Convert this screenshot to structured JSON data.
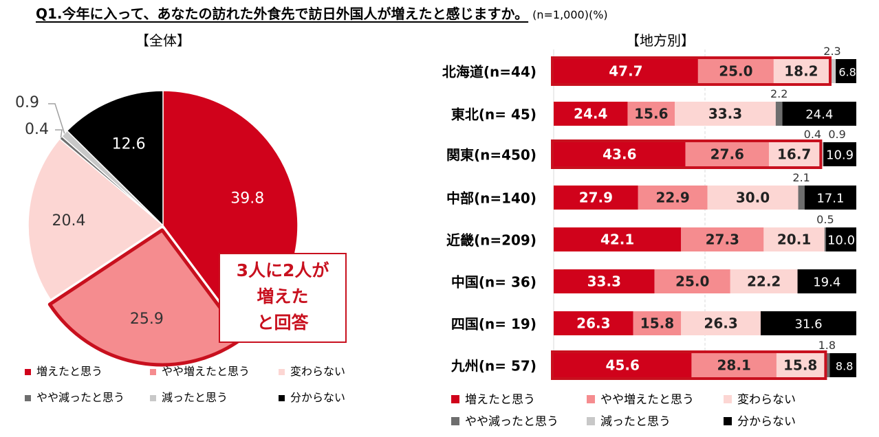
{
  "title": {
    "main": "Q1.今年に入って、あなたの訪れた外食先で訪日外国人が増えたと感じますか。",
    "n_note": "(n=1,000)(%)"
  },
  "colors": {
    "increased": "#d0021b",
    "somewhat_increased": "#f58c8f",
    "unchanged": "#fcd6d3",
    "somewhat_decreased": "#6e6e6e",
    "decreased": "#c8c8c8",
    "unknown": "#000000",
    "highlight": "#c8101e"
  },
  "callout": {
    "lines": [
      "3人に2人が",
      "増えた",
      "と回答"
    ]
  },
  "chart_data": [
    {
      "type": "pie",
      "title": "【全体】",
      "categories": [
        "増えたと思う",
        "やや増えたと思う",
        "変わらない",
        "やや減ったと思う",
        "減ったと思う",
        "分からない"
      ],
      "values": [
        39.8,
        25.9,
        20.4,
        0.4,
        0.9,
        12.6
      ],
      "legend": [
        "増えたと思う",
        "やや増えたと思う",
        "変わらない",
        "やや減ったと思う",
        "減ったと思う",
        "分からない"
      ]
    },
    {
      "type": "bar",
      "orientation": "horizontal",
      "stacked": true,
      "title": "【地方別】",
      "xlim": [
        0,
        100
      ],
      "categories": [
        "北海道(n=44)",
        "東北(n= 45)",
        "関東(n=450)",
        "中部(n=140)",
        "近畿(n=209)",
        "中国(n= 36)",
        "四国(n= 19)",
        "九州(n= 57)"
      ],
      "series": [
        {
          "name": "増えたと思う",
          "values": [
            47.7,
            24.4,
            43.6,
            27.9,
            42.1,
            33.3,
            26.3,
            45.6
          ]
        },
        {
          "name": "やや増えたと思う",
          "values": [
            25.0,
            15.6,
            27.6,
            22.9,
            27.3,
            25.0,
            15.8,
            28.1
          ]
        },
        {
          "name": "変わらない",
          "values": [
            18.2,
            33.3,
            16.7,
            30.0,
            20.1,
            22.2,
            26.3,
            15.8
          ]
        },
        {
          "name": "やや減ったと思う",
          "values": [
            0,
            2.2,
            0.4,
            2.1,
            0.5,
            0,
            0,
            1.8
          ]
        },
        {
          "name": "減ったと思う",
          "values": [
            2.3,
            0,
            0.9,
            0,
            0,
            0,
            0,
            0
          ]
        },
        {
          "name": "分からない",
          "values": [
            6.8,
            24.4,
            10.9,
            17.1,
            10.0,
            19.4,
            31.6,
            8.8
          ]
        }
      ],
      "data_labels": [
        [
          "47.7",
          "25.0",
          "18.2",
          "",
          "2.3",
          "6.8"
        ],
        [
          "24.4",
          "15.6",
          "33.3",
          "2.2",
          "",
          "24.4"
        ],
        [
          "43.6",
          "27.6",
          "16.7",
          "0.4",
          "0.9",
          "10.9"
        ],
        [
          "27.9",
          "22.9",
          "30.0",
          "2.1",
          "",
          "17.1"
        ],
        [
          "42.1",
          "27.3",
          "20.1",
          "0.5",
          "",
          "10.0"
        ],
        [
          "33.3",
          "25.0",
          "22.2",
          "",
          "",
          "19.4"
        ],
        [
          "26.3",
          "15.8",
          "26.3",
          "",
          "",
          "31.6"
        ],
        [
          "45.6",
          "28.1",
          "15.8",
          "1.8",
          "",
          "8.8"
        ]
      ],
      "highlighted_rows": [
        "北海道(n=44)",
        "関東(n=450)",
        "九州(n= 57)"
      ],
      "legend": [
        "増えたと思う",
        "やや増えたと思う",
        "変わらない",
        "やや減ったと思う",
        "減ったと思う",
        "分からない"
      ]
    }
  ]
}
